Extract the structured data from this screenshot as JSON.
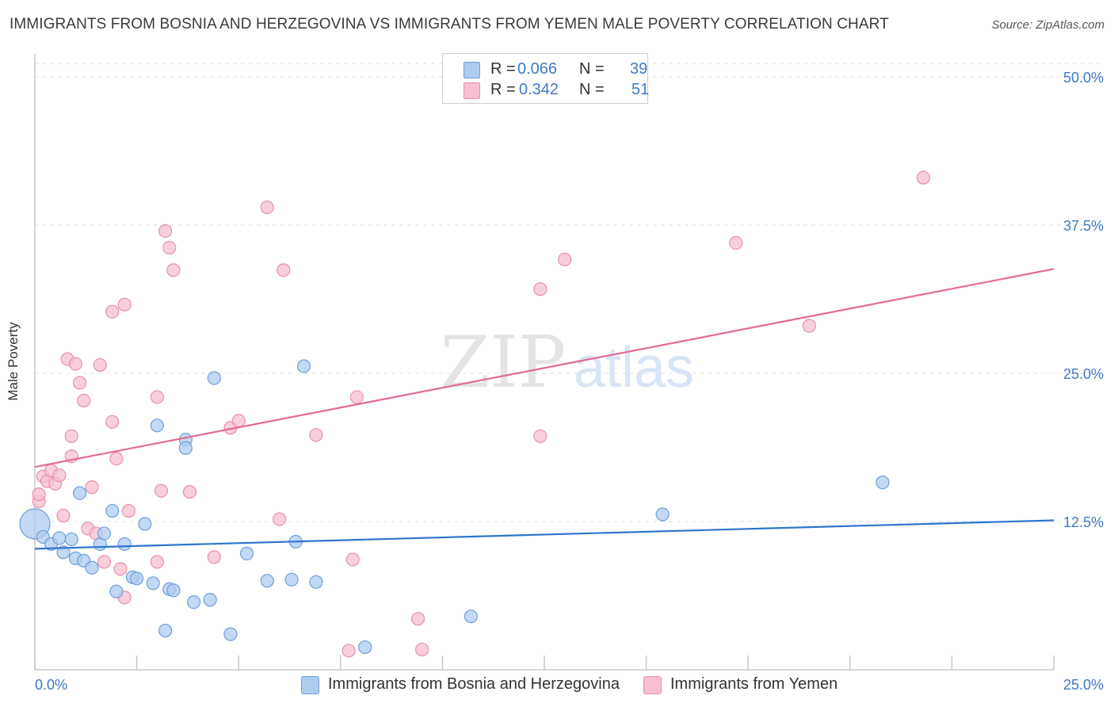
{
  "header": {
    "title": "IMMIGRANTS FROM BOSNIA AND HERZEGOVINA VS IMMIGRANTS FROM YEMEN MALE POVERTY CORRELATION CHART",
    "source": "Source: ZipAtlas.com"
  },
  "legend": {
    "r_label": "R =",
    "n_label": "N =",
    "rows": [
      {
        "r": "0.066",
        "n": "39"
      },
      {
        "r": "0.342",
        "n": "51"
      }
    ]
  },
  "watermark": {
    "zip": "ZIP",
    "atlas": "atlas"
  },
  "colors": {
    "blue_fill": "#aecbf0",
    "blue_stroke": "#6f9fd8",
    "blue_line": "#2f74cf",
    "pink_fill": "#f7bfd0",
    "pink_stroke": "#e690ad",
    "pink_line": "#e46a94",
    "tick_label": "#3f79c8",
    "grid": "#dcdcdc"
  },
  "chart_data": {
    "type": "scatter",
    "title": "IMMIGRANTS FROM BOSNIA AND HERZEGOVINA VS IMMIGRANTS FROM YEMEN MALE POVERTY CORRELATION CHART",
    "xlabel": "",
    "ylabel": "Male Poverty",
    "xlim": [
      0,
      25
    ],
    "ylim": [
      0,
      50
    ],
    "x_tick_labels": [
      {
        "value": 0,
        "label": "0.0%"
      },
      {
        "value": 25,
        "label": "25.0%"
      }
    ],
    "y_tick_labels": [
      {
        "value": 12.5,
        "label": "12.5%"
      },
      {
        "value": 25,
        "label": "25.0%"
      },
      {
        "value": 37.5,
        "label": "37.5%"
      },
      {
        "value": 50,
        "label": "50.0%"
      }
    ],
    "grid": true,
    "legend_position": "top-center",
    "series": [
      {
        "name": "Immigrants from Bosnia and Herzegovina",
        "color": "#aecbf0",
        "r": 0.066,
        "n": 39,
        "trend": {
          "x": [
            0,
            25
          ],
          "y": [
            10.2,
            12.6
          ]
        },
        "points": [
          {
            "x": 0.0,
            "y": 12.3,
            "large": true
          },
          {
            "x": 0.2,
            "y": 11.2
          },
          {
            "x": 0.4,
            "y": 10.6
          },
          {
            "x": 0.6,
            "y": 11.1
          },
          {
            "x": 0.7,
            "y": 9.9
          },
          {
            "x": 0.9,
            "y": 11.0
          },
          {
            "x": 1.0,
            "y": 9.4
          },
          {
            "x": 1.1,
            "y": 14.9
          },
          {
            "x": 1.2,
            "y": 9.2
          },
          {
            "x": 1.4,
            "y": 8.6
          },
          {
            "x": 1.6,
            "y": 10.6
          },
          {
            "x": 1.7,
            "y": 11.5
          },
          {
            "x": 1.9,
            "y": 13.4
          },
          {
            "x": 2.0,
            "y": 6.6
          },
          {
            "x": 2.2,
            "y": 10.6
          },
          {
            "x": 2.4,
            "y": 7.8
          },
          {
            "x": 2.5,
            "y": 7.7
          },
          {
            "x": 2.7,
            "y": 12.3
          },
          {
            "x": 2.9,
            "y": 7.3
          },
          {
            "x": 3.0,
            "y": 20.6
          },
          {
            "x": 3.2,
            "y": 3.3
          },
          {
            "x": 3.3,
            "y": 6.8
          },
          {
            "x": 3.4,
            "y": 6.7
          },
          {
            "x": 3.7,
            "y": 19.4
          },
          {
            "x": 3.7,
            "y": 18.7
          },
          {
            "x": 3.9,
            "y": 5.7
          },
          {
            "x": 4.3,
            "y": 5.9
          },
          {
            "x": 4.4,
            "y": 24.6
          },
          {
            "x": 4.8,
            "y": 3.0
          },
          {
            "x": 5.2,
            "y": 9.8
          },
          {
            "x": 5.7,
            "y": 7.5
          },
          {
            "x": 6.3,
            "y": 7.6
          },
          {
            "x": 6.4,
            "y": 10.8
          },
          {
            "x": 6.6,
            "y": 25.6
          },
          {
            "x": 6.9,
            "y": 7.4
          },
          {
            "x": 8.1,
            "y": 1.9
          },
          {
            "x": 10.7,
            "y": 4.5
          },
          {
            "x": 15.4,
            "y": 13.1
          },
          {
            "x": 20.8,
            "y": 15.8
          }
        ]
      },
      {
        "name": "Immigrants from Yemen",
        "color": "#f7bfd0",
        "r": 0.342,
        "n": 51,
        "trend": {
          "x": [
            0,
            25
          ],
          "y": [
            17.1,
            33.8
          ]
        },
        "points": [
          {
            "x": 0.1,
            "y": 14.2
          },
          {
            "x": 0.1,
            "y": 14.8
          },
          {
            "x": 0.2,
            "y": 16.3
          },
          {
            "x": 0.3,
            "y": 15.9
          },
          {
            "x": 0.4,
            "y": 16.8
          },
          {
            "x": 0.5,
            "y": 15.7
          },
          {
            "x": 0.6,
            "y": 16.4
          },
          {
            "x": 0.7,
            "y": 13.0
          },
          {
            "x": 0.8,
            "y": 26.2
          },
          {
            "x": 0.9,
            "y": 18.0
          },
          {
            "x": 0.9,
            "y": 19.7
          },
          {
            "x": 1.0,
            "y": 25.8
          },
          {
            "x": 1.1,
            "y": 24.2
          },
          {
            "x": 1.2,
            "y": 22.7
          },
          {
            "x": 1.3,
            "y": 11.9
          },
          {
            "x": 1.4,
            "y": 15.4
          },
          {
            "x": 1.5,
            "y": 11.5
          },
          {
            "x": 1.6,
            "y": 25.7
          },
          {
            "x": 1.7,
            "y": 9.1
          },
          {
            "x": 1.9,
            "y": 30.2
          },
          {
            "x": 1.9,
            "y": 20.9
          },
          {
            "x": 2.0,
            "y": 17.8
          },
          {
            "x": 2.1,
            "y": 8.5
          },
          {
            "x": 2.2,
            "y": 30.8
          },
          {
            "x": 2.2,
            "y": 6.1
          },
          {
            "x": 2.3,
            "y": 13.4
          },
          {
            "x": 3.0,
            "y": 23.0
          },
          {
            "x": 3.0,
            "y": 9.1
          },
          {
            "x": 3.1,
            "y": 15.1
          },
          {
            "x": 3.2,
            "y": 37.0
          },
          {
            "x": 3.3,
            "y": 35.6
          },
          {
            "x": 3.4,
            "y": 33.7
          },
          {
            "x": 3.8,
            "y": 15.0
          },
          {
            "x": 4.4,
            "y": 9.5
          },
          {
            "x": 4.8,
            "y": 20.4
          },
          {
            "x": 5.0,
            "y": 21.0
          },
          {
            "x": 5.7,
            "y": 39.0
          },
          {
            "x": 6.0,
            "y": 12.7
          },
          {
            "x": 6.1,
            "y": 33.7
          },
          {
            "x": 6.9,
            "y": 19.8
          },
          {
            "x": 7.7,
            "y": 1.6
          },
          {
            "x": 7.8,
            "y": 9.3
          },
          {
            "x": 7.9,
            "y": 23.0
          },
          {
            "x": 9.4,
            "y": 4.3
          },
          {
            "x": 9.5,
            "y": 1.7
          },
          {
            "x": 12.4,
            "y": 19.7
          },
          {
            "x": 12.4,
            "y": 32.1
          },
          {
            "x": 13.0,
            "y": 34.6
          },
          {
            "x": 17.2,
            "y": 36.0
          },
          {
            "x": 19.0,
            "y": 29.0
          },
          {
            "x": 21.8,
            "y": 41.5
          }
        ]
      }
    ]
  }
}
